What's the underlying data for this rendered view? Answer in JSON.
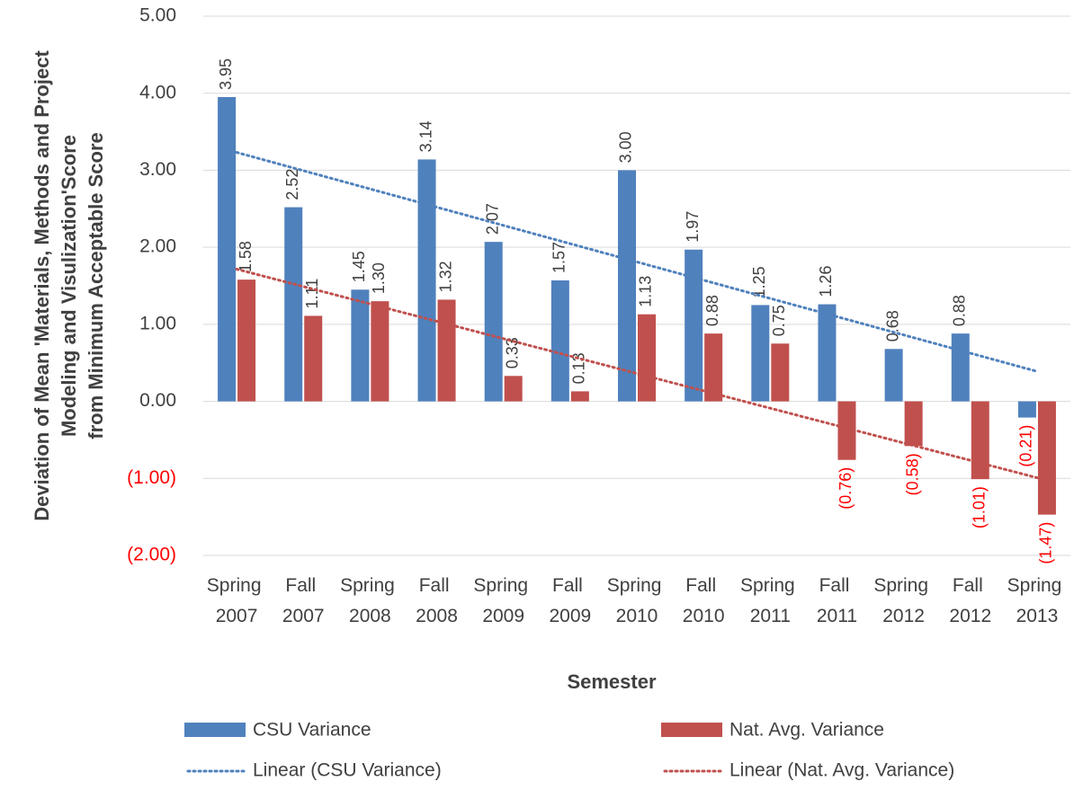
{
  "chart_data": {
    "type": "bar",
    "ylabel": [
      "Deviation of Mean 'Materials, Methods and Project",
      "Modeling and Visulization'Score",
      "from Minimum Acceptable Score"
    ],
    "xlabel": "Semester",
    "categories": [
      "Spring 2007",
      "Fall 2007",
      "Spring 2008",
      "Fall 2008",
      "Spring 2009",
      "Fall 2009",
      "Spring 2010",
      "Fall 2010",
      "Spring 2011",
      "Fall 2011",
      "Spring 2012",
      "Fall 2012",
      "Spring 2013"
    ],
    "series": [
      {
        "name": "CSU Variance",
        "color": "#4f81bd",
        "values": [
          3.95,
          2.52,
          1.45,
          3.14,
          2.07,
          1.57,
          3.0,
          1.97,
          1.25,
          1.26,
          0.68,
          0.88,
          -0.21
        ],
        "value_labels": [
          "3.95",
          "2.52",
          "1.45",
          "3.14",
          "2.07",
          "1.57",
          "3.00",
          "1.97",
          "1.25",
          "1.26",
          "0.68",
          "0.88",
          "(0.21)"
        ]
      },
      {
        "name": "Nat. Avg. Variance",
        "color": "#c0504d",
        "values": [
          1.58,
          1.11,
          1.3,
          1.32,
          0.33,
          0.13,
          1.13,
          0.88,
          0.75,
          -0.76,
          -0.58,
          -1.01,
          -1.47
        ],
        "value_labels": [
          "1.58",
          "1.11",
          "1.30",
          "1.32",
          "0.33",
          "0.13",
          "1.13",
          "0.88",
          "0.75",
          "(0.76)",
          "(0.58)",
          "(1.01)",
          "(1.47)"
        ]
      }
    ],
    "trendlines": [
      {
        "name": "Linear (CSU Variance)",
        "series": 0,
        "color": "#4f81bd"
      },
      {
        "name": "Linear (Nat. Avg. Variance)",
        "series": 1,
        "color": "#c0504d"
      }
    ],
    "ylim": [
      -2,
      5
    ],
    "yticks": [
      {
        "value": -2,
        "label": "(2.00)"
      },
      {
        "value": -1,
        "label": "(1.00)"
      },
      {
        "value": 0,
        "label": "0.00"
      },
      {
        "value": 1,
        "label": "1.00"
      },
      {
        "value": 2,
        "label": "2.00"
      },
      {
        "value": 3,
        "label": "3.00"
      },
      {
        "value": 4,
        "label": "4.00"
      },
      {
        "value": 5,
        "label": "5.00"
      }
    ],
    "negative_label_color": "#ff0000",
    "grid": true
  }
}
